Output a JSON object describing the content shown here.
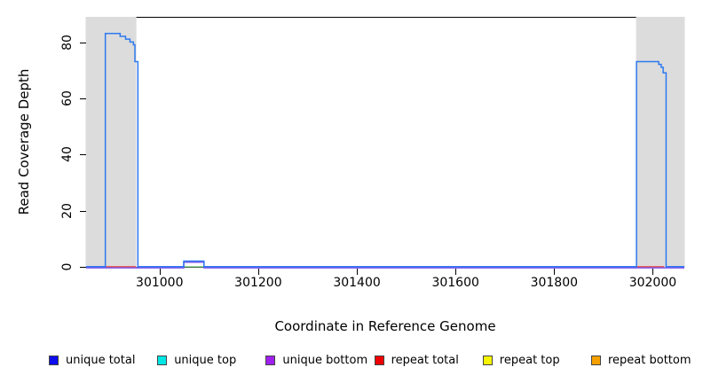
{
  "chart_data": {
    "type": "line",
    "title": "",
    "xlabel": "Coordinate in Reference Genome",
    "ylabel": "Read Coverage Depth",
    "xlim": [
      300851,
      302064
    ],
    "ylim": [
      0,
      89
    ],
    "x_ticks": [
      301000,
      301200,
      301400,
      301600,
      301800,
      302000
    ],
    "y_ticks": [
      0,
      20,
      40,
      60,
      80
    ],
    "grid": false,
    "plot_bg": "#ffffff",
    "box_color": "#000000",
    "shaded_regions": {
      "color": "#dcdcdc",
      "spans": [
        [
          300851,
          300952
        ],
        [
          301967,
          302064
        ]
      ]
    },
    "series": [
      {
        "name": "unique total",
        "color": "#2e79ef",
        "points": [
          [
            300851,
            0
          ],
          [
            300890,
            0
          ],
          [
            300890,
            83
          ],
          [
            300920,
            83
          ],
          [
            300920,
            82
          ],
          [
            300931,
            82
          ],
          [
            300931,
            81
          ],
          [
            300940,
            81
          ],
          [
            300940,
            80
          ],
          [
            300947,
            80
          ],
          [
            300947,
            79
          ],
          [
            300950,
            79
          ],
          [
            300950,
            73
          ],
          [
            300956,
            73
          ],
          [
            300956,
            0
          ],
          [
            301049,
            0
          ],
          [
            301049,
            2
          ],
          [
            301090,
            2
          ],
          [
            301090,
            0
          ],
          [
            301967,
            0
          ],
          [
            301967,
            73
          ],
          [
            302012,
            73
          ],
          [
            302012,
            72
          ],
          [
            302017,
            72
          ],
          [
            302017,
            71
          ],
          [
            302021,
            71
          ],
          [
            302021,
            69
          ],
          [
            302027,
            69
          ],
          [
            302027,
            0
          ],
          [
            302064,
            0
          ]
        ]
      },
      {
        "name": "unique top",
        "color": "#00e5e5",
        "points": [
          [
            300851,
            0
          ],
          [
            302064,
            0
          ]
        ]
      },
      {
        "name": "unique bottom",
        "color": "#7e55ee",
        "points": [
          [
            300851,
            0
          ],
          [
            301049,
            0
          ],
          [
            301049,
            2
          ],
          [
            301090,
            2
          ],
          [
            301090,
            0
          ],
          [
            302064,
            0
          ]
        ]
      },
      {
        "name": "repeat total",
        "color": "#e4504b",
        "visible_segments": [
          [
            300851,
            300952
          ],
          [
            301967,
            302023
          ]
        ]
      },
      {
        "name": "repeat top",
        "color": "#f5f500",
        "points": [
          [
            300851,
            0
          ],
          [
            302064,
            0
          ]
        ]
      },
      {
        "name": "repeat bottom",
        "color": "#f5a000",
        "points": [
          [
            300851,
            0
          ],
          [
            302064,
            0
          ]
        ]
      }
    ],
    "baseline_blend_segment": {
      "color": "#8fd98f",
      "span": [
        301049,
        301090
      ]
    },
    "legend": {
      "position": "bottom-horizontal",
      "items": [
        {
          "label": "unique total",
          "color": "#0d0dee"
        },
        {
          "label": "unique top",
          "color": "#00e5e5"
        },
        {
          "label": "unique bottom",
          "color": "#a020f0"
        },
        {
          "label": "repeat total",
          "color": "#ee0000"
        },
        {
          "label": "repeat top",
          "color": "#f5f500"
        },
        {
          "label": "repeat bottom",
          "color": "#f5a000"
        }
      ]
    }
  }
}
